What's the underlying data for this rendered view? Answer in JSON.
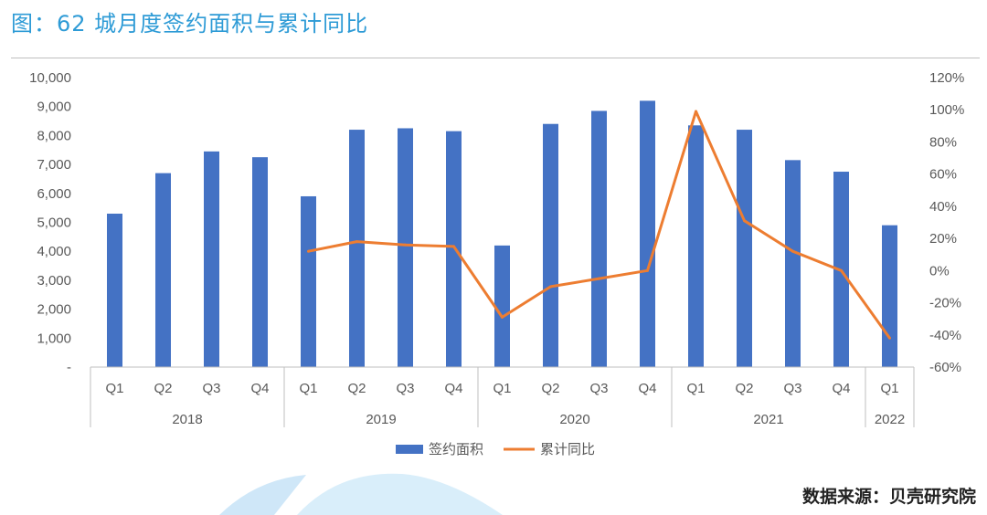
{
  "title": "图：62 城月度签约面积与累计同比",
  "source": "数据来源：贝壳研究院",
  "chart_data": {
    "type": "bar",
    "categories": [
      "Q1",
      "Q2",
      "Q3",
      "Q4",
      "Q1",
      "Q2",
      "Q3",
      "Q4",
      "Q1",
      "Q2",
      "Q3",
      "Q4",
      "Q1",
      "Q2",
      "Q3",
      "Q4",
      "Q1"
    ],
    "groups": [
      {
        "label": "2018",
        "count": 4
      },
      {
        "label": "2019",
        "count": 4
      },
      {
        "label": "2020",
        "count": 4
      },
      {
        "label": "2021",
        "count": 4
      },
      {
        "label": "2022",
        "count": 1
      }
    ],
    "series": [
      {
        "name": "签约面积",
        "type": "bar",
        "axis": "left",
        "color": "#4472c4",
        "values": [
          5300,
          6700,
          7450,
          7250,
          5900,
          8200,
          8250,
          8150,
          4200,
          8400,
          8850,
          9200,
          8350,
          8200,
          7150,
          6750,
          4900
        ]
      },
      {
        "name": "累计同比",
        "type": "line",
        "axis": "right",
        "color": "#ed7d31",
        "values": [
          null,
          null,
          null,
          null,
          0.12,
          0.18,
          0.16,
          0.15,
          -0.29,
          -0.1,
          -0.05,
          0.0,
          0.99,
          0.31,
          0.12,
          0.0,
          -0.42
        ]
      }
    ],
    "left_axis": {
      "min": 0,
      "max": 10000,
      "ticks": [
        0,
        1000,
        2000,
        3000,
        4000,
        5000,
        6000,
        7000,
        8000,
        9000,
        10000
      ],
      "tick_labels": [
        "-",
        "1,000",
        "2,000",
        "3,000",
        "4,000",
        "5,000",
        "6,000",
        "7,000",
        "8,000",
        "9,000",
        "10,000"
      ]
    },
    "right_axis": {
      "min": -0.6,
      "max": 1.2,
      "ticks": [
        -0.6,
        -0.4,
        -0.2,
        0,
        0.2,
        0.4,
        0.6,
        0.8,
        1.0,
        1.2
      ],
      "tick_labels": [
        "-60%",
        "-40%",
        "-20%",
        "0%",
        "20%",
        "40%",
        "60%",
        "80%",
        "100%",
        "120%"
      ]
    },
    "grid": false,
    "legend_position": "bottom"
  }
}
